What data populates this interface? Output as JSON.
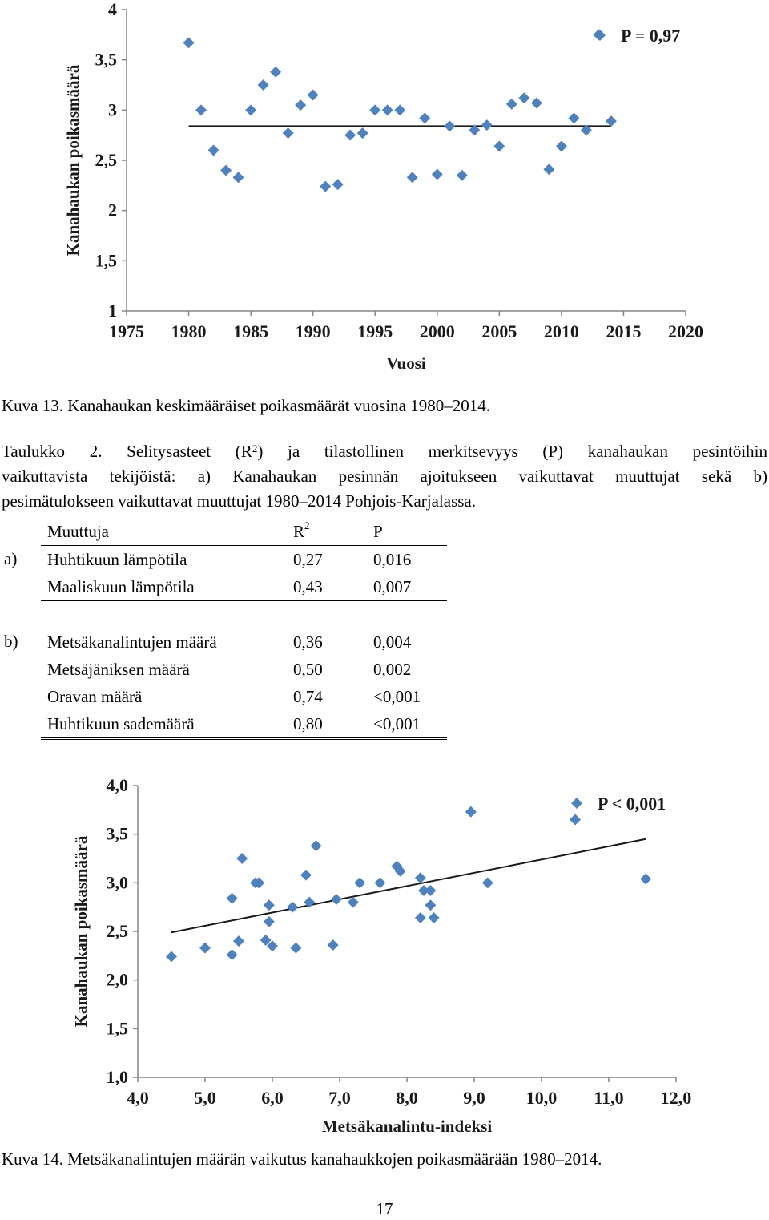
{
  "charts": {
    "colors": {
      "marker": "#4f81bd",
      "trendline": "#1a1a1a",
      "axis": "#868686"
    }
  },
  "chart_data": [
    {
      "type": "scatter",
      "title": "",
      "xlabel": "Vuosi",
      "ylabel": "Kanahaukan poikasmäärä",
      "annotation": "P = 0,97",
      "xlim": [
        1975,
        2020
      ],
      "ylim": [
        1,
        4
      ],
      "x_ticks": [
        "1975",
        "1980",
        "1985",
        "1990",
        "1995",
        "2000",
        "2005",
        "2010",
        "2015",
        "2020"
      ],
      "y_ticks": [
        "1",
        "1,5",
        "2",
        "2,5",
        "3",
        "3,5",
        "4"
      ],
      "x": [
        1980,
        1981,
        1982,
        1983,
        1984,
        1985,
        1986,
        1987,
        1988,
        1989,
        1990,
        1991,
        1992,
        1993,
        1994,
        1995,
        1996,
        1997,
        1998,
        1999,
        2000,
        2001,
        2002,
        2003,
        2004,
        2005,
        2006,
        2007,
        2008,
        2009,
        2010,
        2011,
        2012,
        2013,
        2014
      ],
      "y": [
        3.67,
        3.0,
        2.6,
        2.4,
        2.33,
        3.0,
        3.25,
        3.38,
        2.77,
        3.05,
        3.15,
        2.24,
        2.26,
        2.75,
        2.77,
        3.0,
        3.0,
        3.0,
        2.33,
        2.92,
        2.36,
        2.84,
        2.35,
        2.8,
        2.85,
        2.64,
        3.06,
        3.12,
        3.07,
        2.41,
        2.64,
        2.92,
        2.8,
        3.75,
        2.89
      ],
      "trendline": {
        "x": [
          1980,
          2014
        ],
        "y": [
          2.84,
          2.84
        ]
      }
    },
    {
      "type": "scatter",
      "title": "",
      "xlabel": "Metsäkanalintu-indeksi",
      "ylabel": "Kanahaukan poikasmäärä",
      "annotation": "P < 0,001",
      "xlim": [
        4,
        12
      ],
      "ylim": [
        1,
        4
      ],
      "x_ticks": [
        "4,0",
        "5,0",
        "6,0",
        "7,0",
        "8,0",
        "9,0",
        "10,0",
        "11,0",
        "12,0"
      ],
      "y_ticks": [
        "1,0",
        "1,5",
        "2,0",
        "2,5",
        "3,0",
        "3,5",
        "4,0"
      ],
      "x": [
        4.5,
        5.0,
        5.4,
        5.4,
        5.5,
        5.55,
        5.75,
        5.8,
        5.9,
        5.95,
        5.95,
        6.0,
        6.3,
        6.35,
        6.5,
        6.55,
        6.65,
        6.9,
        6.95,
        7.2,
        7.3,
        7.6,
        7.85,
        7.9,
        8.2,
        8.2,
        8.25,
        8.35,
        8.35,
        8.4,
        8.95,
        9.2,
        10.5,
        11.55
      ],
      "y": [
        2.24,
        2.33,
        2.26,
        2.84,
        2.4,
        3.25,
        3.0,
        3.0,
        2.41,
        2.6,
        2.77,
        2.35,
        2.75,
        2.33,
        3.08,
        2.8,
        3.38,
        2.36,
        2.83,
        2.8,
        3.0,
        3.0,
        3.17,
        3.12,
        2.64,
        3.05,
        2.92,
        2.92,
        2.77,
        2.64,
        3.73,
        3.0,
        3.65,
        3.04
      ],
      "trendline": {
        "x": [
          4.5,
          11.55
        ],
        "y": [
          2.49,
          3.45
        ]
      }
    }
  ],
  "captions": {
    "fig13": "Kuva 13. Kanahaukan keskimääräiset poikasmäärät vuosina 1980–2014.",
    "fig14": "Kuva 14. Metsäkanalintujen määrän vaikutus kanahaukkojen poikasmäärään 1980–2014."
  },
  "table_caption": {
    "part1": "Taulukko 2. Selitysasteet (R",
    "sup": "2",
    "part2": ") ja tilastollinen merkitsevyys (P) kanahaukan pesintöihin",
    "line2": "vaikuttavista tekijöistä: a) Kanahaukan pesinnän ajoitukseen vaikuttavat muuttujat sekä b)",
    "line3": "pesimätulokseen vaikuttavat muuttujat 1980–2014 Pohjois-Karjalassa."
  },
  "table": {
    "header": {
      "variable": "Muuttuja",
      "r2": "R",
      "r2_sup": "2",
      "p": "P"
    },
    "group_a": {
      "label": "a)",
      "rows": [
        {
          "variable": "Huhtikuun lämpötila",
          "r2": "0,27",
          "p": "0,016"
        },
        {
          "variable": "Maaliskuun lämpötila",
          "r2": "0,43",
          "p": "0,007"
        }
      ]
    },
    "group_b": {
      "label": "b)",
      "rows": [
        {
          "variable": "Metsäkanalintujen määrä",
          "r2": "0,36",
          "p": "0,004"
        },
        {
          "variable": "Metsäjäniksen määrä",
          "r2": "0,50",
          "p": "0,002"
        },
        {
          "variable": "Oravan määrä",
          "r2": "0,74",
          "p": "<0,001"
        },
        {
          "variable": "Huhtikuun sademäärä",
          "r2": "0,80",
          "p": "<0,001"
        }
      ]
    }
  },
  "page_number": "17"
}
